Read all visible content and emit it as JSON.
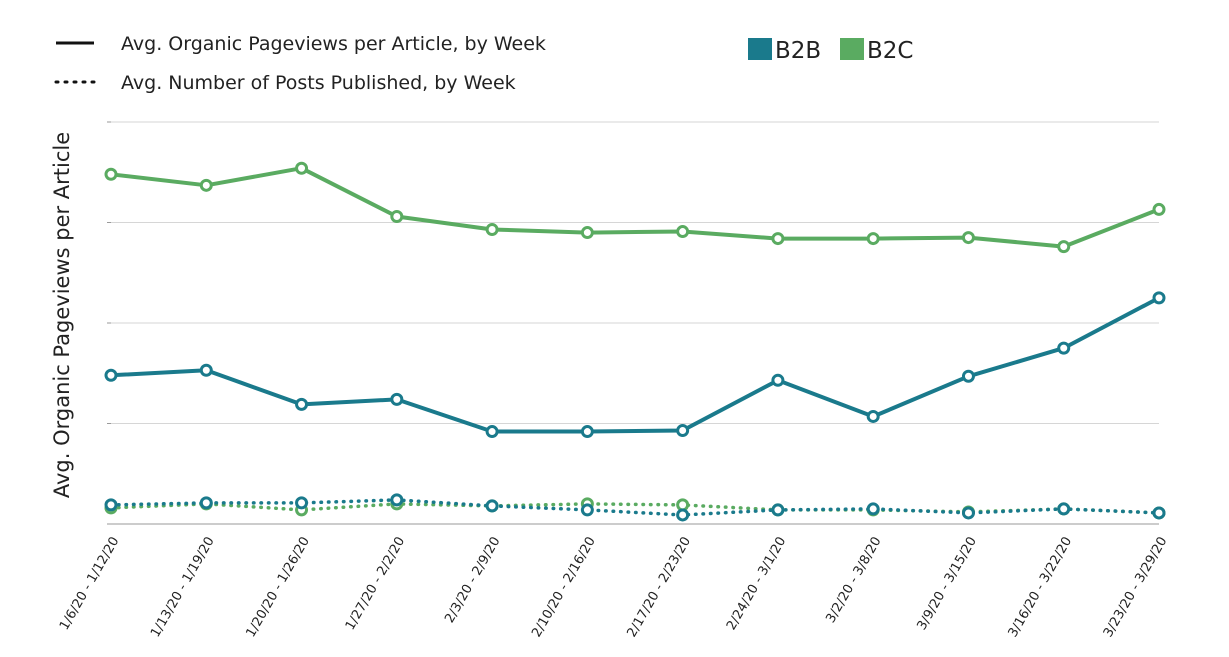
{
  "chart_data": {
    "type": "line",
    "title": "",
    "xlabel": "",
    "ylabel": "Avg. Organic Pageviews per Article",
    "ylim": [
      0,
      4
    ],
    "grid": true,
    "legend_position": "top",
    "line_style_legend": [
      {
        "style": "solid",
        "label": "Avg. Organic Pageviews per Article, by Week"
      },
      {
        "style": "dotted",
        "label": "Avg. Number of Posts Published, by Week"
      }
    ],
    "categories": [
      "1/6/20 - 1/12/20",
      "1/13/20 - 1/19/20",
      "1/20/20 - 1/26/20",
      "1/27/20 - 2/2/20",
      "2/3/20 - 2/9/20",
      "2/10/20 - 2/16/20",
      "2/17/20 - 2/23/20",
      "2/24/20 - 3/1/20",
      "3/2/20 - 3/8/20",
      "3/9/20 - 3/15/20",
      "3/16/20 - 3/22/20",
      "3/23/20 - 3/29/20"
    ],
    "series": [
      {
        "name": "B2C",
        "style": "solid",
        "color": "#5aab61",
        "values": [
          3.48,
          3.37,
          3.54,
          3.06,
          2.93,
          2.9,
          2.91,
          2.84,
          2.84,
          2.85,
          2.76,
          3.13
        ]
      },
      {
        "name": "B2B",
        "style": "solid",
        "color": "#1a7a8c",
        "values": [
          1.48,
          1.53,
          1.19,
          1.24,
          0.92,
          0.92,
          0.93,
          1.43,
          1.07,
          1.47,
          1.75,
          2.25
        ]
      },
      {
        "name": "B2C",
        "style": "dotted",
        "color": "#5aab61",
        "values": [
          0.16,
          0.2,
          0.14,
          0.2,
          0.18,
          0.2,
          0.19,
          0.14,
          0.14,
          0.12,
          0.15,
          0.11
        ]
      },
      {
        "name": "B2B",
        "style": "dotted",
        "color": "#1a7a8c",
        "values": [
          0.19,
          0.21,
          0.21,
          0.24,
          0.18,
          0.14,
          0.09,
          0.14,
          0.15,
          0.11,
          0.15,
          0.11
        ]
      }
    ],
    "legend": [
      {
        "name": "B2B",
        "color": "#1a7a8c"
      },
      {
        "name": "B2C",
        "color": "#5aab61"
      }
    ]
  }
}
